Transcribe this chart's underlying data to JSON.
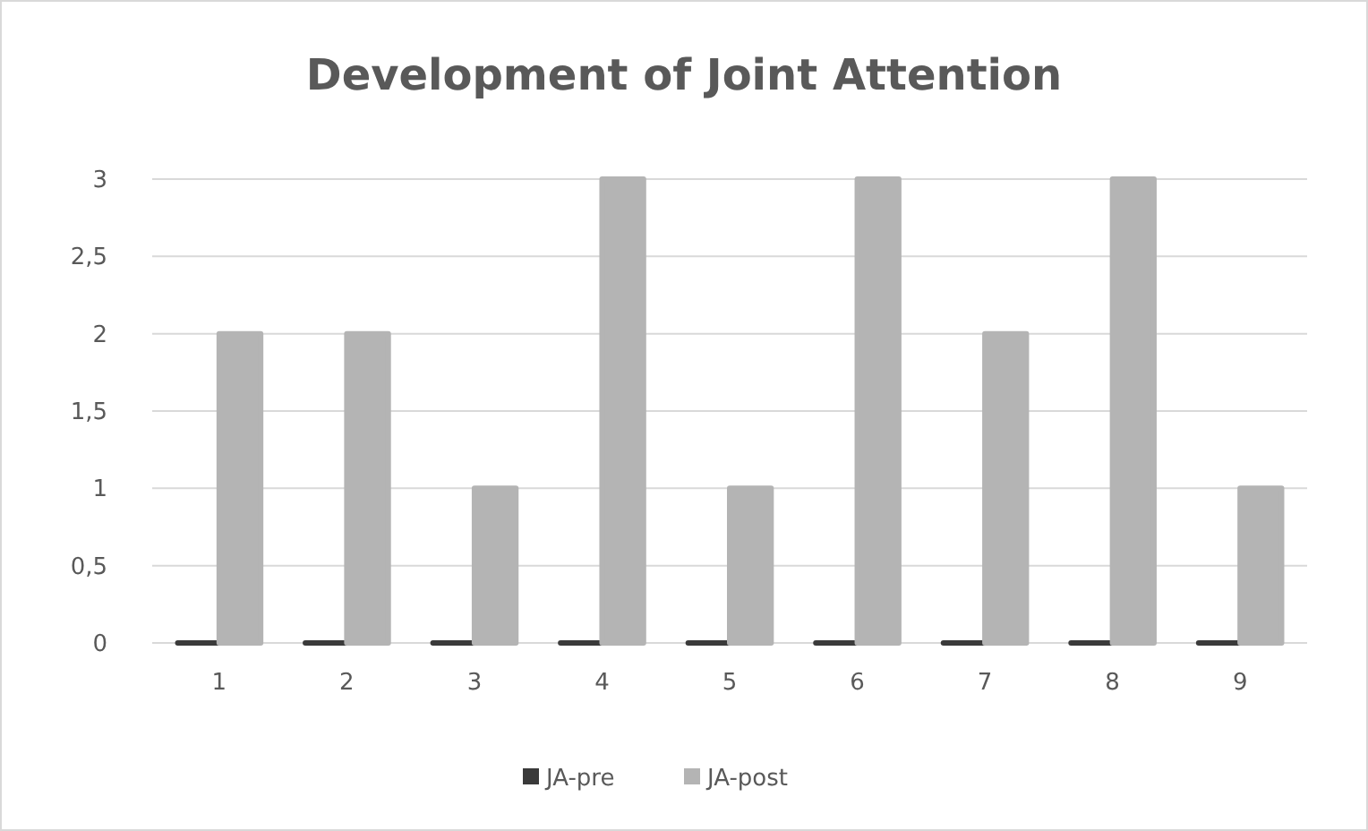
{
  "chart_data": {
    "type": "bar",
    "title": "Development of Joint Attention",
    "categories": [
      "1",
      "2",
      "3",
      "4",
      "5",
      "6",
      "7",
      "8",
      "9"
    ],
    "series": [
      {
        "name": "JA-pre",
        "color": "#3a3a3a",
        "values": [
          0,
          0,
          0,
          0,
          0,
          0,
          0,
          0,
          0
        ]
      },
      {
        "name": "JA-post",
        "color": "#b4b4b4",
        "values": [
          2,
          2,
          1,
          3,
          1,
          3,
          2,
          3,
          1
        ]
      }
    ],
    "ylim": [
      0,
      3
    ],
    "yticks": [
      0,
      {
        "value": 0.5,
        "label": "0,5"
      },
      1,
      {
        "value": 1.5,
        "label": "1,5"
      },
      2,
      {
        "value": 2.5,
        "label": "2,5"
      },
      3
    ],
    "grid": "y",
    "legend": "bottom"
  }
}
